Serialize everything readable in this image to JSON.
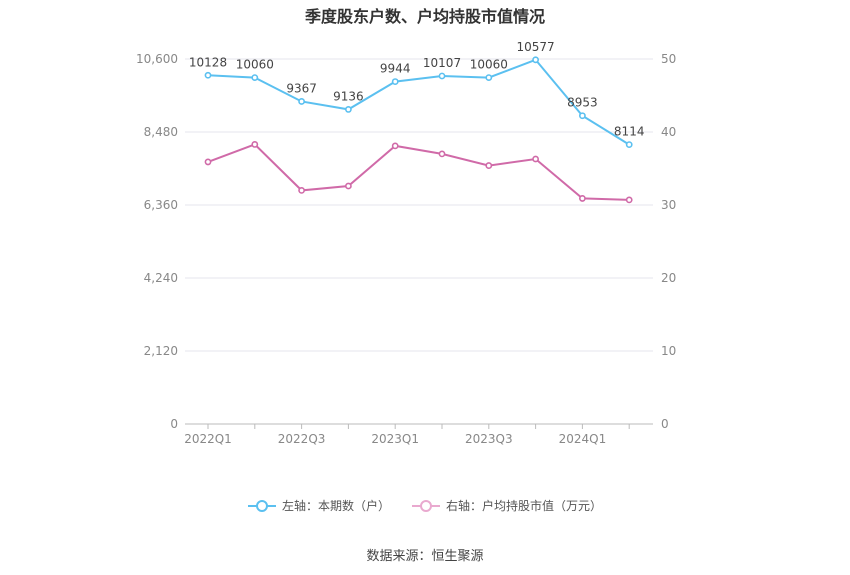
{
  "chart_data": {
    "type": "line",
    "title": "季度股东户数、户均持股市值情况",
    "categories": [
      "2022Q1",
      "2022Q2",
      "2022Q3",
      "2022Q4",
      "2023Q1",
      "2023Q2",
      "2023Q3",
      "2023Q4",
      "2024Q1",
      "2024Q2"
    ],
    "x_tick_labels": [
      "2022Q1",
      "2022Q3",
      "2023Q1",
      "2023Q3",
      "2024Q1"
    ],
    "series": [
      {
        "name": "左轴：本期数（户）",
        "axis": "left",
        "color": "#5bc0f0",
        "values": [
          10128,
          10060,
          9367,
          9136,
          9944,
          10107,
          10060,
          10577,
          8953,
          8114
        ],
        "labels": [
          "10128",
          "10060",
          "9367",
          "9136",
          "9944",
          "10107",
          "10060",
          "10577",
          "8953",
          "8114"
        ]
      },
      {
        "name": "右轴：户均持股市值（万元）",
        "axis": "right",
        "color": "#d06aa8",
        "values": [
          35.9,
          38.3,
          32.0,
          32.6,
          38.1,
          37.0,
          35.4,
          36.3,
          30.9,
          30.7
        ]
      }
    ],
    "y_left": {
      "min": 0,
      "max": 10600,
      "ticks": [
        "0",
        "2,120",
        "4,240",
        "6,360",
        "8,480",
        "10,600"
      ]
    },
    "y_right": {
      "min": 0,
      "max": 50,
      "ticks": [
        "0",
        "10",
        "20",
        "30",
        "40",
        "50"
      ]
    },
    "grid": true,
    "legend_position": "bottom"
  },
  "footer": {
    "source": "数据来源：恒生聚源"
  }
}
